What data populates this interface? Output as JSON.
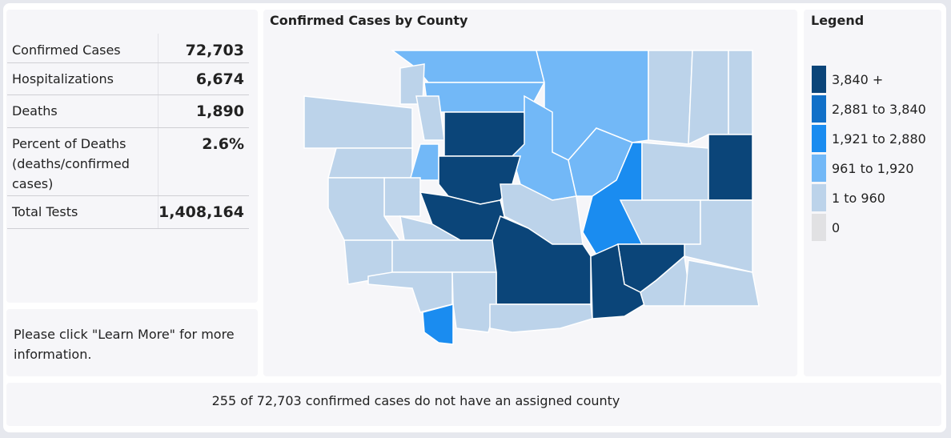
{
  "stats": {
    "rows": [
      {
        "label": "Confirmed Cases",
        "value": "72,703"
      },
      {
        "label": "Hospitalizations",
        "value": "6,674"
      },
      {
        "label": "Deaths",
        "value": "1,890"
      },
      {
        "label": "Percent of Deaths (deaths/confirmed cases)",
        "value": "2.6%"
      },
      {
        "label": "Total Tests",
        "value": "1,408,164"
      }
    ]
  },
  "info": "Please click \"Learn More\" for more information.",
  "map": {
    "title": "Confirmed Cases by County"
  },
  "legend": {
    "title": "Legend",
    "items": [
      {
        "label": "3,840 +",
        "color": "#0b4579"
      },
      {
        "label": "2,881 to 3,840",
        "color": "#1170c8"
      },
      {
        "label": "1,921 to 2,880",
        "color": "#1a8cf0"
      },
      {
        "label": "961 to 1,920",
        "color": "#72b8f7"
      },
      {
        "label": "1 to 960",
        "color": "#bcd3ea"
      },
      {
        "label": "0",
        "color": "#e1e1e3"
      }
    ]
  },
  "footnote": "255 of 72,703 confirmed cases do not have an assigned county"
}
